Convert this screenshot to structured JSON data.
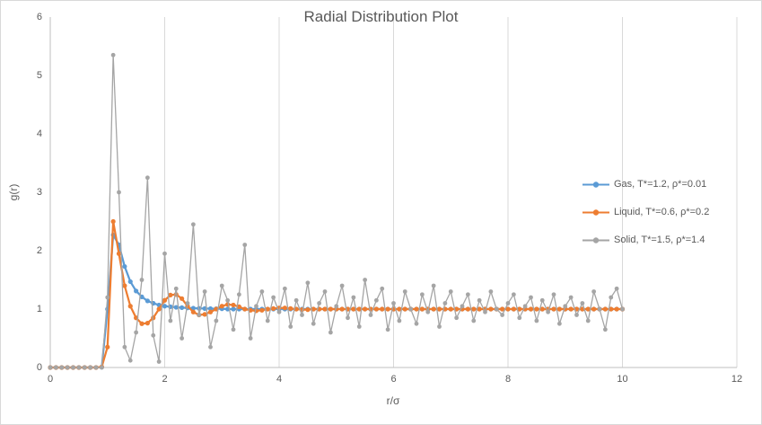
{
  "chart_data": {
    "type": "line",
    "marker": "circle",
    "title": "Radial Distribution Plot",
    "xlabel": "r/σ",
    "ylabel": "g(r)",
    "xlim": [
      0,
      12
    ],
    "ylim": [
      0,
      6
    ],
    "x_ticks": [
      0,
      2,
      4,
      6,
      8,
      10,
      12
    ],
    "y_ticks": [
      0,
      1,
      2,
      3,
      4,
      5,
      6
    ],
    "grid": {
      "vertical": true,
      "horizontal": false
    },
    "legend_position": "right-middle",
    "style": {
      "gridline_color": "#d9d9d9",
      "axis_color": "#bfbfbf",
      "text_color": "#595959",
      "background": "#ffffff"
    },
    "x": [
      0,
      0.1,
      0.2,
      0.3,
      0.4,
      0.5,
      0.6,
      0.7,
      0.8,
      0.9,
      1,
      1.1,
      1.2,
      1.3,
      1.4,
      1.5,
      1.6,
      1.7,
      1.8,
      1.9,
      2,
      2.1,
      2.2,
      2.3,
      2.4,
      2.5,
      2.6,
      2.7,
      2.8,
      2.9,
      3,
      3.1,
      3.2,
      3.3,
      3.4,
      3.5,
      3.6,
      3.7,
      3.8,
      3.9,
      4,
      4.1,
      4.2,
      4.3,
      4.4,
      4.5,
      4.6,
      4.7,
      4.8,
      4.9,
      5,
      5.1,
      5.2,
      5.3,
      5.4,
      5.5,
      5.6,
      5.7,
      5.8,
      5.9,
      6,
      6.1,
      6.2,
      6.3,
      6.4,
      6.5,
      6.6,
      6.7,
      6.8,
      6.9,
      7,
      7.1,
      7.2,
      7.3,
      7.4,
      7.5,
      7.6,
      7.7,
      7.8,
      7.9,
      8,
      8.1,
      8.2,
      8.3,
      8.4,
      8.5,
      8.6,
      8.7,
      8.8,
      8.9,
      9,
      9.1,
      9.2,
      9.3,
      9.4,
      9.5,
      9.6,
      9.7,
      9.8,
      9.9,
      10
    ],
    "series": [
      {
        "name": "Gas, T*=1.2, ρ*=0.01",
        "color": "#5b9bd5",
        "values": [
          0,
          0,
          0,
          0,
          0,
          0,
          0,
          0,
          0,
          0.005,
          1,
          2.27,
          2.1,
          1.73,
          1.47,
          1.31,
          1.21,
          1.14,
          1.1,
          1.07,
          1.05,
          1.04,
          1.03,
          1.025,
          1.02,
          1.015,
          1.012,
          1.01,
          1.008,
          1.006,
          1.005,
          1,
          1,
          1,
          1,
          1,
          1,
          1,
          1,
          1,
          1,
          1,
          1,
          1,
          1,
          1,
          1,
          1,
          1,
          1,
          1,
          1,
          1,
          1,
          1,
          1,
          1,
          1,
          1,
          1,
          1,
          1,
          1,
          1,
          1,
          1,
          1,
          1,
          1,
          1,
          1,
          1,
          1,
          1,
          1,
          1,
          1,
          1,
          1,
          1,
          1,
          1,
          1,
          1,
          1,
          1,
          1,
          1,
          1,
          1,
          1,
          1,
          1,
          1,
          1,
          1,
          1,
          1,
          1,
          1,
          1
        ]
      },
      {
        "name": "Liquid, T*=0.6, ρ*=0.2",
        "color": "#ed7d31",
        "values": [
          0,
          0,
          0,
          0,
          0,
          0,
          0,
          0,
          0,
          0.01,
          0.35,
          2.5,
          1.95,
          1.4,
          1.05,
          0.85,
          0.75,
          0.76,
          0.85,
          1,
          1.15,
          1.24,
          1.25,
          1.18,
          1.05,
          0.95,
          0.9,
          0.91,
          0.95,
          1,
          1.05,
          1.08,
          1.07,
          1.04,
          1,
          0.98,
          0.97,
          0.98,
          1,
          1.01,
          1.02,
          1.02,
          1.01,
          1,
          0.99,
          0.99,
          1,
          1,
          1,
          1,
          1,
          1,
          1,
          1,
          1,
          1,
          1,
          1,
          1,
          1,
          1,
          1,
          1,
          1,
          1,
          1,
          1,
          1,
          1,
          1,
          1,
          1,
          1,
          1,
          1,
          1,
          1,
          1,
          1,
          1,
          1,
          1,
          1,
          1,
          1,
          1,
          1,
          1,
          1,
          1,
          1,
          1,
          1,
          1,
          1,
          1,
          1,
          1,
          1,
          1,
          1
        ]
      },
      {
        "name": "Solid, T*=1.5, ρ*=1.4",
        "color": "#a5a5a5",
        "values": [
          0,
          0,
          0,
          0,
          0,
          0,
          0,
          0,
          0,
          0,
          1.2,
          5.35,
          3,
          0.35,
          0.12,
          0.6,
          1.5,
          3.25,
          0.55,
          0.1,
          1.95,
          0.8,
          1.35,
          0.5,
          1.1,
          2.45,
          0.9,
          1.3,
          0.35,
          0.8,
          1.4,
          1.15,
          0.65,
          1.25,
          2.1,
          0.5,
          1.05,
          1.3,
          0.8,
          1.2,
          0.95,
          1.35,
          0.7,
          1.15,
          0.9,
          1.45,
          0.75,
          1.1,
          1.3,
          0.6,
          1.05,
          1.4,
          0.85,
          1.2,
          0.7,
          1.5,
          0.9,
          1.15,
          1.35,
          0.65,
          1.1,
          0.8,
          1.3,
          1,
          0.75,
          1.25,
          0.95,
          1.4,
          0.7,
          1.1,
          1.3,
          0.85,
          1.05,
          1.25,
          0.8,
          1.15,
          0.95,
          1.3,
          1,
          0.9,
          1.1,
          1.25,
          0.85,
          1.05,
          1.2,
          0.8,
          1.15,
          0.95,
          1.25,
          0.75,
          1.05,
          1.2,
          0.9,
          1.1,
          0.8,
          1.3,
          1,
          0.65,
          1.2,
          1.35,
          1
        ]
      }
    ]
  }
}
